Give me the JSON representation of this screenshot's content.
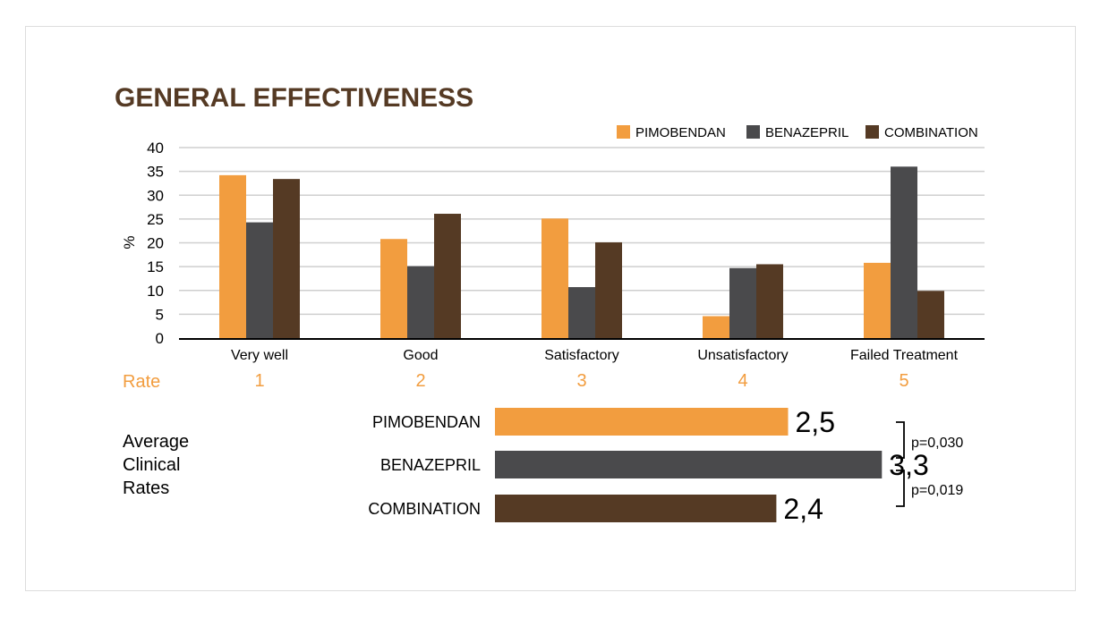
{
  "colors": {
    "pimobendan": "#F29D3F",
    "benazepril": "#4A4A4C",
    "combination": "#553A24",
    "title": "#553A24",
    "rate": "#F29D3F",
    "grid": "#CFCFCF",
    "axis": "#000000"
  },
  "chart_data": [
    {
      "type": "bar",
      "title": "GENERAL EFFECTIVENESS",
      "ylabel": "%",
      "xlabel": "",
      "ylim": [
        0,
        40
      ],
      "yticks": [
        0,
        5,
        10,
        15,
        20,
        25,
        30,
        35,
        40
      ],
      "grid": true,
      "legend_position": "top-right",
      "categories": [
        "Very well",
        "Good",
        "Satisfactory",
        "Unsatisfactory",
        "Failed Treatment"
      ],
      "series": [
        {
          "name": "PIMOBENDAN",
          "values": [
            34.2,
            20.8,
            25.1,
            4.6,
            15.8
          ]
        },
        {
          "name": "BENAZEPRIL",
          "values": [
            24.3,
            15.1,
            10.7,
            14.7,
            36.0
          ]
        },
        {
          "name": "COMBINATION",
          "values": [
            33.4,
            26.1,
            20.1,
            15.5,
            9.9
          ]
        }
      ],
      "rate_label": "Rate",
      "rates": [
        "1",
        "2",
        "3",
        "4",
        "5"
      ]
    },
    {
      "type": "bar",
      "orientation": "horizontal",
      "title": "Average Clinical Rates",
      "title_lines": [
        "Average",
        "Clinical",
        "Rates"
      ],
      "xlim": [
        0,
        5
      ],
      "categories": [
        "PIMOBENDAN",
        "BENAZEPRIL",
        "COMBINATION"
      ],
      "values": [
        2.5,
        3.3,
        2.4
      ],
      "value_labels": [
        "2,5",
        "3,3",
        "2,4"
      ],
      "p_values": [
        "p=0,030",
        "p=0,019"
      ]
    }
  ]
}
